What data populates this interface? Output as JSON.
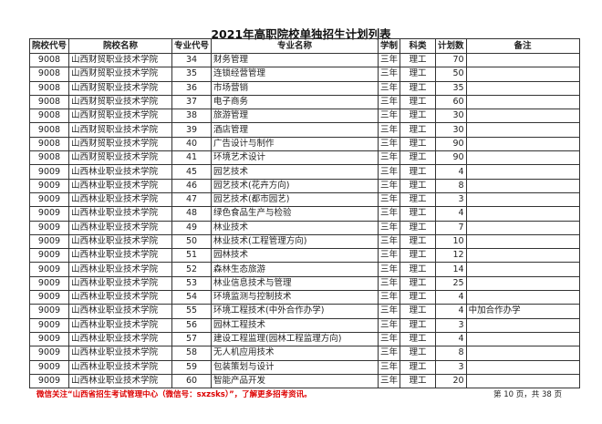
{
  "title": "2021年高职院校单独招生计划列表",
  "headers": [
    "院校代号",
    "院校名称",
    "专业代号",
    "专业名称",
    "学制",
    "科类",
    "计划数",
    "备注"
  ],
  "rows": [
    [
      "9008",
      "山西财贸职业技术学院",
      "34",
      "财务管理",
      "三年",
      "理工",
      "70",
      ""
    ],
    [
      "9008",
      "山西财贸职业技术学院",
      "35",
      "连锁经营管理",
      "三年",
      "理工",
      "50",
      ""
    ],
    [
      "9008",
      "山西财贸职业技术学院",
      "36",
      "市场营销",
      "三年",
      "理工",
      "35",
      ""
    ],
    [
      "9008",
      "山西财贸职业技术学院",
      "37",
      "电子商务",
      "三年",
      "理工",
      "60",
      ""
    ],
    [
      "9008",
      "山西财贸职业技术学院",
      "38",
      "旅游管理",
      "三年",
      "理工",
      "30",
      ""
    ],
    [
      "9008",
      "山西财贸职业技术学院",
      "39",
      "酒店管理",
      "三年",
      "理工",
      "30",
      ""
    ],
    [
      "9008",
      "山西财贸职业技术学院",
      "40",
      "广告设计与制作",
      "三年",
      "理工",
      "90",
      ""
    ],
    [
      "9008",
      "山西财贸职业技术学院",
      "41",
      "环境艺术设计",
      "三年",
      "理工",
      "90",
      ""
    ],
    [
      "9009",
      "山西林业职业技术学院",
      "45",
      "园艺技术",
      "三年",
      "理工",
      "4",
      ""
    ],
    [
      "9009",
      "山西林业职业技术学院",
      "46",
      "园艺技术(花卉方向)",
      "三年",
      "理工",
      "8",
      ""
    ],
    [
      "9009",
      "山西林业职业技术学院",
      "47",
      "园艺技术(都市园艺)",
      "三年",
      "理工",
      "3",
      ""
    ],
    [
      "9009",
      "山西林业职业技术学院",
      "48",
      "绿色食品生产与检验",
      "三年",
      "理工",
      "4",
      ""
    ],
    [
      "9009",
      "山西林业职业技术学院",
      "49",
      "林业技术",
      "三年",
      "理工",
      "7",
      ""
    ],
    [
      "9009",
      "山西林业职业技术学院",
      "50",
      "林业技术(工程管理方向)",
      "三年",
      "理工",
      "10",
      ""
    ],
    [
      "9009",
      "山西林业职业技术学院",
      "51",
      "园林技术",
      "三年",
      "理工",
      "12",
      ""
    ],
    [
      "9009",
      "山西林业职业技术学院",
      "52",
      "森林生态旅游",
      "三年",
      "理工",
      "14",
      ""
    ],
    [
      "9009",
      "山西林业职业技术学院",
      "53",
      "林业信息技术与管理",
      "三年",
      "理工",
      "25",
      ""
    ],
    [
      "9009",
      "山西林业职业技术学院",
      "54",
      "环境监测与控制技术",
      "三年",
      "理工",
      "4",
      ""
    ],
    [
      "9009",
      "山西林业职业技术学院",
      "55",
      "环境工程技术(中外合作办学)",
      "三年",
      "理工",
      "4",
      "中加合作办学"
    ],
    [
      "9009",
      "山西林业职业技术学院",
      "56",
      "园林工程技术",
      "三年",
      "理工",
      "3",
      ""
    ],
    [
      "9009",
      "山西林业职业技术学院",
      "57",
      "建设工程监理(园林工程监理方向)",
      "三年",
      "理工",
      "4",
      ""
    ],
    [
      "9009",
      "山西林业职业技术学院",
      "58",
      "无人机应用技术",
      "三年",
      "理工",
      "8",
      ""
    ],
    [
      "9009",
      "山西林业职业技术学院",
      "59",
      "包装策划与设计",
      "三年",
      "理工",
      "3",
      ""
    ],
    [
      "9009",
      "山西林业职业技术学院",
      "60",
      "智能产品开发",
      "三年",
      "理工",
      "20",
      ""
    ]
  ],
  "footer": "微信关注“山西省招生考试管理中心（微信号：sxzsks）”，了解更多招考资讯。",
  "page_info": "第 10 页，共 38 页",
  "colors": {
    "footer": "#dd0000"
  }
}
